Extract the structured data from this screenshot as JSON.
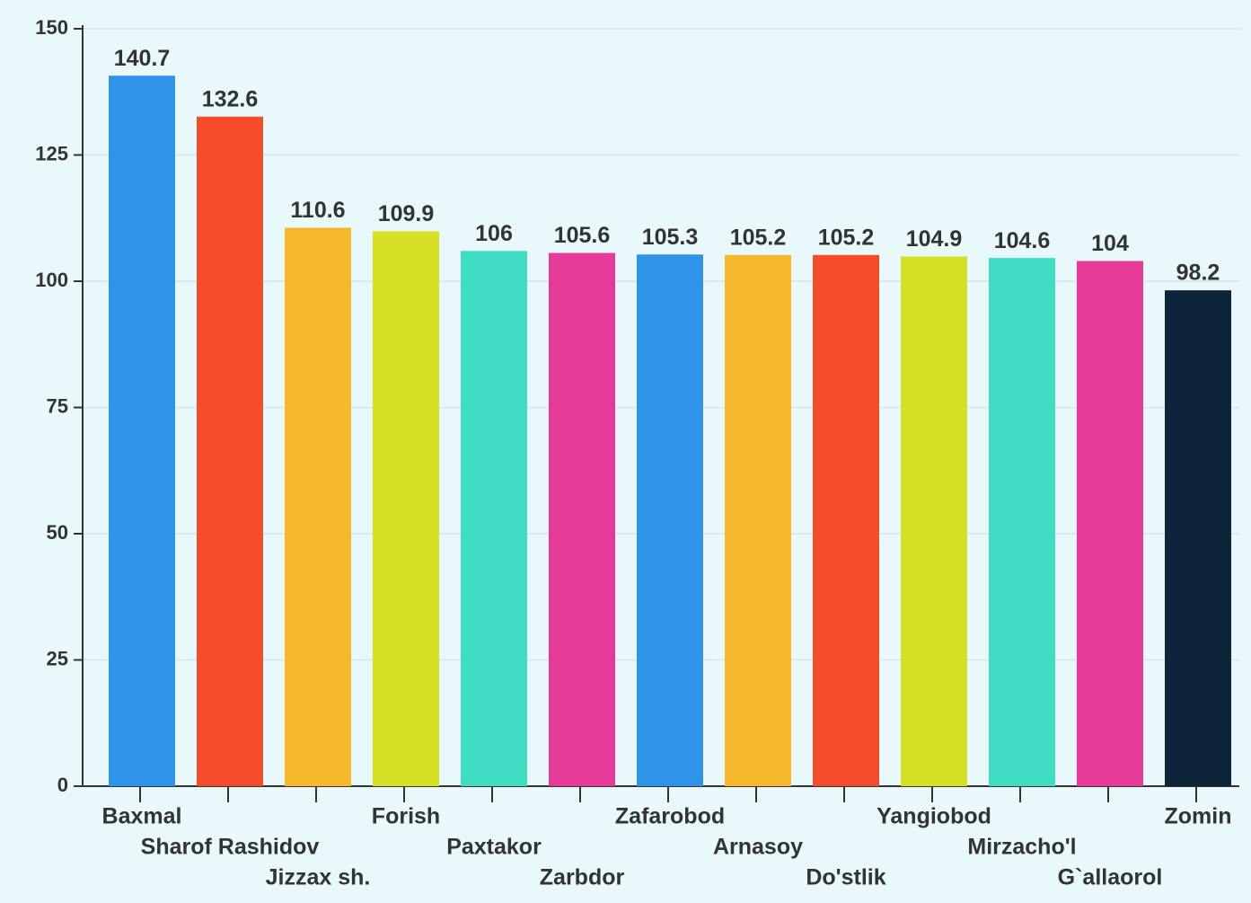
{
  "chart_data": {
    "type": "bar",
    "categories": [
      "Baxmal",
      "Sharof Rashidov",
      "Jizzax sh.",
      "Forish",
      "Paxtakor",
      "Zarbdor",
      "Zafarobod",
      "Arnasoy",
      "Do'stlik",
      "Yangiobod",
      "Mirzacho'l",
      "G`allaorol",
      "Zomin"
    ],
    "values": [
      140.7,
      132.6,
      110.6,
      109.9,
      106,
      105.6,
      105.3,
      105.2,
      105.2,
      104.9,
      104.6,
      104,
      98.2
    ],
    "colors": [
      "#2f93e8",
      "#f54d2c",
      "#f6b92e",
      "#d6e025",
      "#3ddcc3",
      "#e63a99",
      "#2f93e8",
      "#f6b92e",
      "#f54d2c",
      "#d6e025",
      "#3ddcc3",
      "#e63a99",
      "#0d253a"
    ],
    "ylim": [
      0,
      150
    ],
    "yticks": [
      0,
      25,
      50,
      75,
      100,
      125,
      150
    ],
    "grid": true
  }
}
